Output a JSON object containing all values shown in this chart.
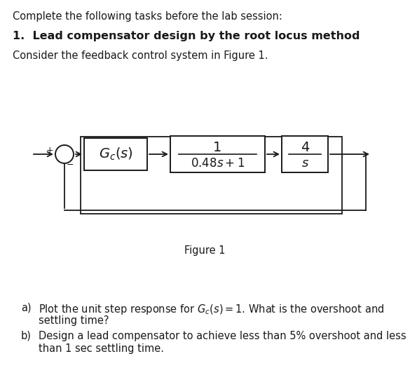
{
  "title_line": "Complete the following tasks before the lab session:",
  "heading": "1.  Lead compensator design by the root locus method",
  "intro_text": "Consider the feedback control system in Figure 1.",
  "figure_label": "Figure 1",
  "qa_label": "a)  ",
  "qa_line1": "Plot the unit step response for $G_c(s)=1$. What is the overshoot and",
  "qa_line2": "settling time?",
  "qb_label": "b)  ",
  "qb_line1": "Design a lead compensator to achieve less than 5% overshoot and less",
  "qb_line2": "than 1 sec settling time.",
  "bg_color": "#ffffff",
  "text_color": "#1a1a1a",
  "box_color": "#1a1a1a",
  "fs_body": 10.5,
  "fs_heading": 11.5,
  "fs_block": 12,
  "fs_math": 13
}
